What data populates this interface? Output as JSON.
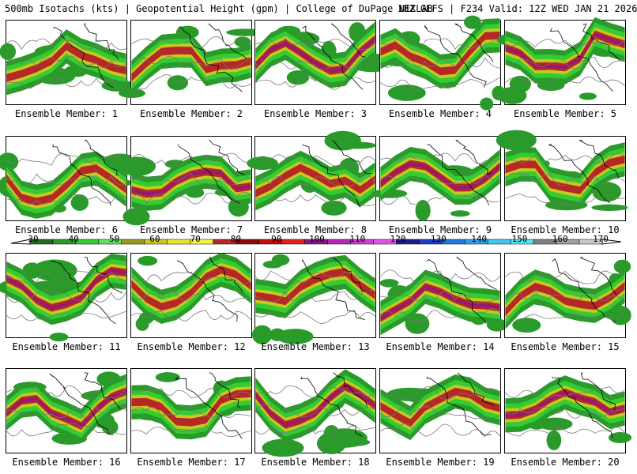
{
  "header": {
    "left": "500mb Isotachs (kts) | Geopotential Height (gpm) | College of DuPage NEXLAB",
    "right": "18Z GEFS | F234 Valid: 12Z WED JAN 21 2026"
  },
  "panels": [
    {
      "label": "Ensemble Member: 1"
    },
    {
      "label": "Ensemble Member: 2"
    },
    {
      "label": "Ensemble Member: 3"
    },
    {
      "label": "Ensemble Member: 4"
    },
    {
      "label": "Ensemble Member: 5"
    },
    {
      "label": "Ensemble Member: 6"
    },
    {
      "label": "Ensemble Member: 7"
    },
    {
      "label": "Ensemble Member: 8"
    },
    {
      "label": "Ensemble Member: 9"
    },
    {
      "label": "Ensemble Member: 10"
    },
    {
      "label": "Ensemble Member: 11"
    },
    {
      "label": "Ensemble Member: 12"
    },
    {
      "label": "Ensemble Member: 13"
    },
    {
      "label": "Ensemble Member: 14"
    },
    {
      "label": "Ensemble Member: 15"
    },
    {
      "label": "Ensemble Member: 16"
    },
    {
      "label": "Ensemble Member: 17"
    },
    {
      "label": "Ensemble Member: 18"
    },
    {
      "label": "Ensemble Member: 19"
    },
    {
      "label": "Ensemble Member: 20"
    }
  ],
  "colorbar": {
    "labels": [
      "30",
      "40",
      "50",
      "60",
      "70",
      "80",
      "90",
      "100",
      "110",
      "120",
      "130",
      "140",
      "150",
      "160",
      "170"
    ],
    "colors": [
      "#1e6e1e",
      "#2a9a2a",
      "#33cc33",
      "#5fe05f",
      "#9a9a1a",
      "#c8c81e",
      "#e6e628",
      "#f5f53c",
      "#b42828",
      "#8c0a0a",
      "#c80a0a",
      "#e61e1e",
      "#8c148c",
      "#b428b4",
      "#d23cd2",
      "#e650e6",
      "#1e1e8c",
      "#1e3cc8",
      "#1e78e6",
      "#28a0f0",
      "#3cc8f0",
      "#50e6f5",
      "#808080",
      "#a0a0a0",
      "#c8c8c8"
    ]
  }
}
